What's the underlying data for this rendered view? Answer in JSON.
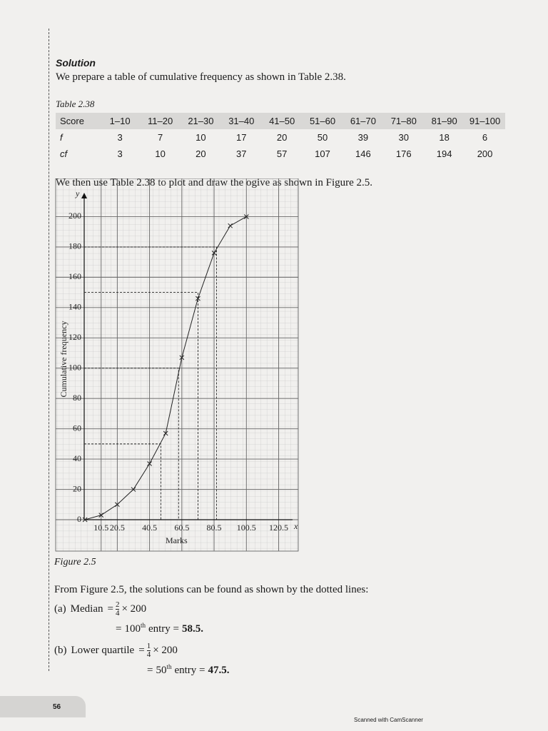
{
  "header": {
    "title": "Solution"
  },
  "intro": "We prepare a table of cumulative frequency as shown in Table 2.38.",
  "table": {
    "caption": "Table 2.38",
    "rows": [
      [
        "Score",
        "1–10",
        "11–20",
        "21–30",
        "31–40",
        "41–50",
        "51–60",
        "61–70",
        "71–80",
        "81–90",
        "91–100"
      ],
      [
        "f",
        3,
        7,
        10,
        17,
        20,
        50,
        39,
        30,
        18,
        6
      ],
      [
        "cf",
        3,
        10,
        20,
        37,
        57,
        107,
        146,
        176,
        194,
        200
      ]
    ]
  },
  "plot_intro": "We then use Table 2.38 to plot and draw the ogive as shown in Figure 2.5.",
  "chart_data": {
    "type": "line",
    "x_label": "Marks",
    "y_label": "Cumulative frequency",
    "x_axis_letter": "x",
    "y_axis_letter": "y",
    "x": [
      0.5,
      10.5,
      20.5,
      30.5,
      40.5,
      50.5,
      60.5,
      70.5,
      80.5,
      90.5,
      100.5
    ],
    "series": [
      {
        "color": "#222222",
        "values": [
          0,
          3,
          10,
          20,
          37,
          57,
          107,
          146,
          176,
          194,
          200
        ]
      }
    ],
    "guides": [
      {
        "x": 47.5,
        "y": 50
      },
      {
        "x": 58.5,
        "y": 100
      },
      {
        "x": 70.5,
        "y": 150
      },
      {
        "x": 82,
        "y": 180
      }
    ],
    "xlim": [
      0,
      130
    ],
    "ylim": [
      0,
      212
    ],
    "xticks": [
      10.5,
      20.5,
      40.5,
      60.5,
      80.5,
      100.5,
      120.5
    ],
    "yticks": [
      0,
      20,
      40,
      60,
      80,
      100,
      120,
      140,
      160,
      180,
      200
    ],
    "grid": true
  },
  "figure_caption": "Figure 2.5",
  "solutions_intro": "From Figure 2.5, the solutions can be found as shown by the dotted lines:",
  "solutions": [
    {
      "label": "(a)",
      "name": "Median",
      "eq": "=",
      "num": "2",
      "den": "4",
      "times": "× 200",
      "eq2": "=",
      "ordinal": "100",
      "suffix": "th",
      "rest": "entry =",
      "answer": "58.5."
    },
    {
      "label": "(b)",
      "name": "Lower quartile",
      "eq": "=",
      "num": "1",
      "den": "4",
      "times": "× 200",
      "eq2": "=",
      "ordinal": "50",
      "suffix": "th",
      "rest": "entry =",
      "answer": "47.5."
    }
  ],
  "page_number": "56",
  "footer": "Scanned with CamScanner"
}
